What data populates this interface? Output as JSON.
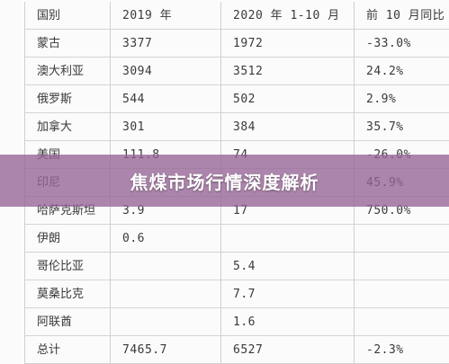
{
  "table": {
    "header": [
      "国别",
      "2019 年",
      "2020 年 1-10 月",
      "前 10 月同比"
    ],
    "rows": [
      [
        "蒙古",
        "3377",
        "1972",
        "-33.0%"
      ],
      [
        "澳大利亚",
        "3094",
        "3512",
        "24.2%"
      ],
      [
        "俄罗斯",
        "544",
        "502",
        "2.9%"
      ],
      [
        "加拿大",
        "301",
        "384",
        "35.7%"
      ],
      [
        "美国",
        "111.8",
        "74",
        "-26.0%"
      ],
      [
        "印尼",
        null,
        null,
        "45.9%"
      ],
      [
        "哈萨克斯坦",
        "3.9",
        "17",
        "750.0%"
      ],
      [
        "伊朗",
        "0.6",
        null,
        null
      ],
      [
        "哥伦比亚",
        null,
        "5.4",
        null
      ],
      [
        "莫桑比克",
        null,
        "7.7",
        null
      ],
      [
        "阿联酋",
        null,
        "1.6",
        null
      ],
      [
        "总计",
        "7465.7",
        "6527",
        "-2.3%"
      ]
    ]
  },
  "banner": {
    "title": "焦煤市场行情深度解析"
  }
}
